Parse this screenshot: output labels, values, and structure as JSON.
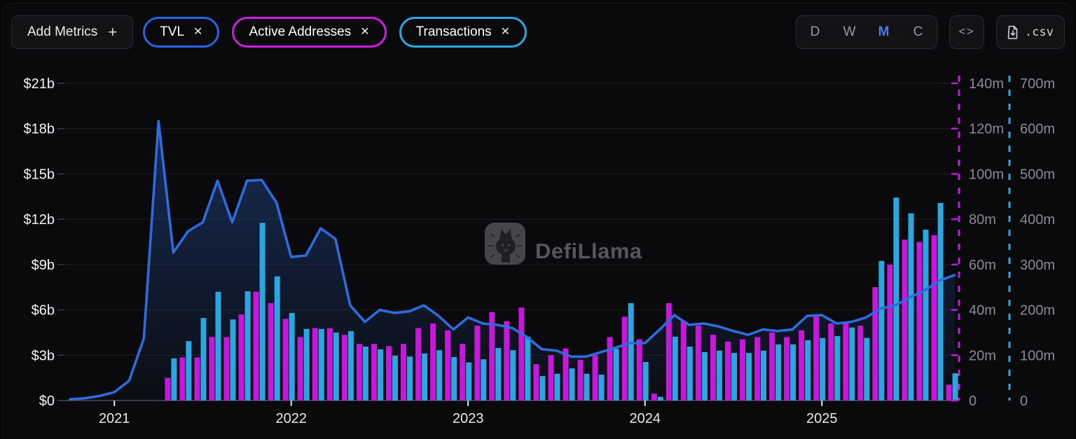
{
  "toolbar": {
    "add_metrics_label": "Add Metrics",
    "plus_icon": "+",
    "close_icon": "✕",
    "pills": [
      {
        "label": "TVL",
        "color": "#2565e8"
      },
      {
        "label": "Active Addresses",
        "color": "#cd1fe0"
      },
      {
        "label": "Transactions",
        "color": "#2ba8e8"
      }
    ],
    "range": {
      "options": [
        "D",
        "W",
        "M",
        "C"
      ],
      "active": "M",
      "active_color": "#4e7ce8"
    },
    "embed_icon": "<>",
    "csv_label": ".csv"
  },
  "watermark": {
    "text": "DefiLlama"
  },
  "chart_data": {
    "type": [
      "area",
      "bar",
      "bar"
    ],
    "title": "",
    "x_years": [
      "2021",
      "2022",
      "2023",
      "2024",
      "2025"
    ],
    "axes": {
      "left": {
        "name": "TVL ($b)",
        "tick_labels": [
          "$21b",
          "$18b",
          "$15b",
          "$12b",
          "$9b",
          "$6b",
          "$3b",
          "$0"
        ],
        "tick_values": [
          21,
          18,
          15,
          12,
          9,
          6,
          3,
          0
        ],
        "max": 21
      },
      "right1": {
        "name": "Active Addresses (m)",
        "color": "#bb1fd9",
        "tick_labels": [
          "140m",
          "120m",
          "100m",
          "80m",
          "60m",
          "40m",
          "20m",
          "0"
        ],
        "tick_values": [
          140,
          120,
          100,
          80,
          60,
          40,
          20,
          0
        ],
        "max": 140
      },
      "right2": {
        "name": "Transactions (m)",
        "color": "#2ba8e8",
        "tick_labels": [
          "700m",
          "600m",
          "500m",
          "400m",
          "300m",
          "200m",
          "100m",
          "0"
        ],
        "tick_values": [
          700,
          600,
          500,
          400,
          300,
          200,
          100,
          0
        ],
        "max": 700
      }
    },
    "series": [
      {
        "name": "TVL",
        "type": "line-area",
        "axis": "left",
        "unit": "$b",
        "color": "#2e6bdc",
        "start": "2020-10",
        "values": [
          0.08,
          0.15,
          0.3,
          0.55,
          1.3,
          4.1,
          18.5,
          9.8,
          11.2,
          11.8,
          14.55,
          11.8,
          14.55,
          14.6,
          13.1,
          9.5,
          9.6,
          11.4,
          10.7,
          6.3,
          5.2,
          6.0,
          5.8,
          5.9,
          6.3,
          5.6,
          4.7,
          5.5,
          5.1,
          5.0,
          4.8,
          4.2,
          3.4,
          3.3,
          2.9,
          2.9,
          3.2,
          3.5,
          3.8,
          3.8,
          4.7,
          5.65,
          5.0,
          5.1,
          4.9,
          4.6,
          4.35,
          4.7,
          4.6,
          4.7,
          5.6,
          5.65,
          5.1,
          5.2,
          5.5,
          6.1,
          6.3,
          6.85,
          7.3,
          7.95,
          8.3
        ]
      },
      {
        "name": "Active Addresses",
        "type": "bar",
        "axis": "right1",
        "unit": "m",
        "color": "#c916dc",
        "start": "2021-05",
        "values": [
          10,
          19,
          19,
          28,
          28,
          38,
          48,
          43,
          36,
          28,
          32,
          32,
          29,
          25,
          25,
          24,
          25,
          32,
          34,
          31,
          25,
          33,
          39,
          35,
          41,
          16,
          20,
          23,
          18,
          20,
          28,
          37,
          27,
          3,
          43,
          35,
          33,
          29,
          26,
          27,
          28,
          30,
          28,
          31,
          37,
          34,
          34,
          33,
          50,
          60,
          71,
          70,
          73,
          7
        ]
      },
      {
        "name": "Transactions",
        "type": "bar",
        "axis": "right2",
        "unit": "m",
        "color": "#2aa7e0",
        "start": "2021-05",
        "values": [
          93,
          131,
          182,
          240,
          179,
          241,
          392,
          274,
          193,
          158,
          158,
          150,
          153,
          119,
          113,
          99,
          97,
          104,
          111,
          96,
          84,
          91,
          116,
          111,
          141,
          54,
          59,
          71,
          59,
          57,
          114,
          215,
          85,
          8,
          141,
          119,
          107,
          110,
          105,
          105,
          110,
          124,
          124,
          133,
          138,
          142,
          161,
          138,
          308,
          448,
          413,
          377,
          436,
          60
        ]
      }
    ],
    "legend_position": "top-pills",
    "grid": true
  }
}
